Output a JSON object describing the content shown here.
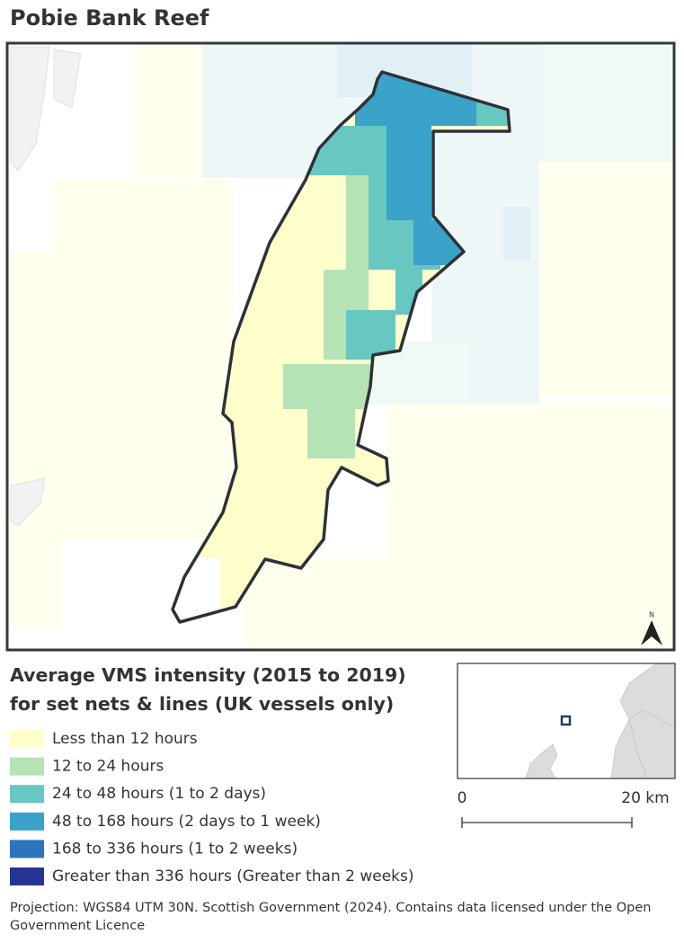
{
  "title": "Pobie Bank Reef",
  "legend": {
    "title_lines": [
      "Average VMS intensity (2015 to 2019)",
      "for set nets & lines (UK vessels only)"
    ],
    "items": [
      {
        "label": "Less than 12 hours",
        "color": "#ffffcc"
      },
      {
        "label": "12 to 24 hours",
        "color": "#b5e3b6"
      },
      {
        "label": "24 to 48 hours (1 to 2 days)",
        "color": "#66c8c0"
      },
      {
        "label": "48 to 168 hours (2 days to 1 week)",
        "color": "#3ba2c9"
      },
      {
        "label": "168 to 336 hours (1 to 2 weeks)",
        "color": "#2c74bd"
      },
      {
        "label": "Greater than 336 hours (Greater than 2 weeks)",
        "color": "#263594"
      }
    ]
  },
  "scale_bar": {
    "labels": [
      "0",
      "20 km"
    ]
  },
  "north_arrow": "N",
  "footer": "Projection: WGS84 UTM 30N. Scottish Government (2024). Contains data licensed under the Open Government Licence"
}
